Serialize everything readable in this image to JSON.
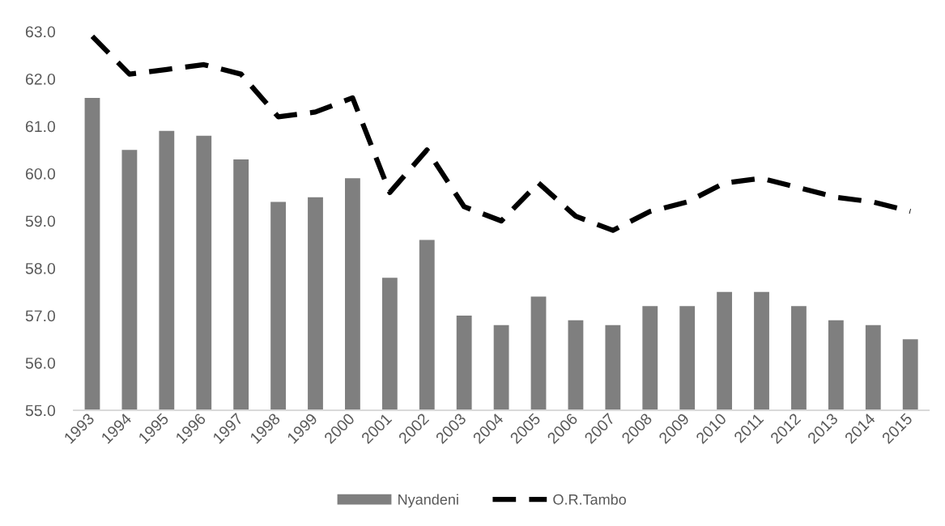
{
  "chart_data": {
    "type": "bar",
    "categories": [
      "1993",
      "1994",
      "1995",
      "1996",
      "1997",
      "1998",
      "1999",
      "2000",
      "2001",
      "2002",
      "2003",
      "2004",
      "2005",
      "2006",
      "2007",
      "2008",
      "2009",
      "2010",
      "2011",
      "2012",
      "2013",
      "2014",
      "2015"
    ],
    "series": [
      {
        "name": "Nyandeni",
        "color": "#7f7f7f",
        "values": [
          61.6,
          60.5,
          60.9,
          60.8,
          60.3,
          59.4,
          59.5,
          59.9,
          57.8,
          58.6,
          57.0,
          56.8,
          57.4,
          56.9,
          56.8,
          57.2,
          57.2,
          57.5,
          57.5,
          57.2,
          56.9,
          56.8,
          56.5
        ]
      },
      {
        "name": "O.R.Tambo",
        "type": "line",
        "color": "#000000",
        "line_style": "dashed",
        "values": [
          62.9,
          62.1,
          62.2,
          62.3,
          62.1,
          61.2,
          61.3,
          61.6,
          59.6,
          60.5,
          59.3,
          59.0,
          59.8,
          59.1,
          58.8,
          59.2,
          59.4,
          59.8,
          59.9,
          59.7,
          59.5,
          59.4,
          59.2
        ]
      }
    ],
    "ylim": [
      55,
      63
    ],
    "yticks": [
      {
        "value": 55,
        "label": "55.0"
      },
      {
        "value": 56,
        "label": "56.0"
      },
      {
        "value": 57,
        "label": "57.0"
      },
      {
        "value": 58,
        "label": "58.0"
      },
      {
        "value": 59,
        "label": "59.0"
      },
      {
        "value": 60,
        "label": "60.0"
      },
      {
        "value": 61,
        "label": "61.0"
      },
      {
        "value": 62,
        "label": "62.0"
      },
      {
        "value": 63,
        "label": "63.0"
      }
    ],
    "grid": false,
    "legend": "bottom"
  }
}
